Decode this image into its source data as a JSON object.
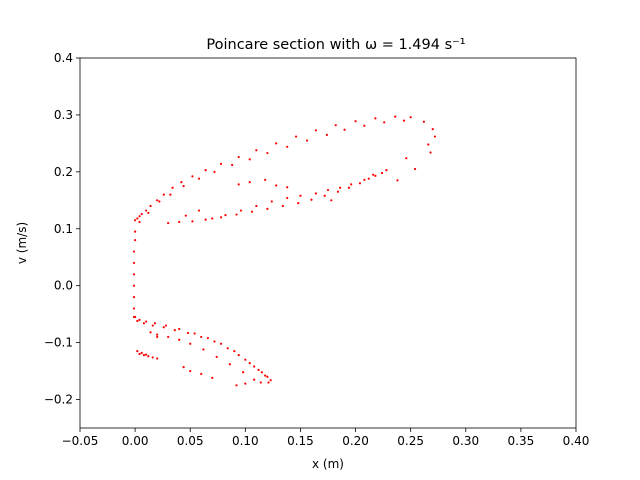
{
  "chart_data": {
    "type": "scatter",
    "title": "Poincare section with ω = 1.494 s⁻¹",
    "xlabel": "x (m)",
    "ylabel": "v (m/s)",
    "xlim": [
      -0.05,
      0.4
    ],
    "ylim": [
      -0.25,
      0.4
    ],
    "xticks": [
      -0.05,
      0.0,
      0.05,
      0.1,
      0.15,
      0.2,
      0.25,
      0.3,
      0.35,
      0.4
    ],
    "xtick_labels": [
      "−0.05",
      "0.00",
      "0.05",
      "0.10",
      "0.15",
      "0.20",
      "0.25",
      "0.30",
      "0.35",
      "0.40"
    ],
    "yticks": [
      -0.2,
      -0.1,
      0.0,
      0.1,
      0.2,
      0.3,
      0.4
    ],
    "ytick_labels": [
      "−0.2",
      "−0.1",
      "0.0",
      "0.1",
      "0.2",
      "0.3",
      "0.4"
    ],
    "grid": false,
    "marker_color": "#ff0000",
    "series": [
      {
        "points": [
          [
            0.0,
            0.115
          ],
          [
            0.002,
            0.118
          ],
          [
            0.004,
            0.122
          ],
          [
            0.006,
            0.126
          ],
          [
            0.01,
            0.132
          ],
          [
            0.014,
            0.14
          ],
          [
            0.02,
            0.15
          ],
          [
            0.026,
            0.16
          ],
          [
            0.034,
            0.172
          ],
          [
            0.042,
            0.182
          ],
          [
            0.052,
            0.192
          ],
          [
            0.064,
            0.203
          ],
          [
            0.078,
            0.214
          ],
          [
            0.094,
            0.226
          ],
          [
            0.11,
            0.238
          ],
          [
            0.128,
            0.25
          ],
          [
            0.146,
            0.262
          ],
          [
            0.164,
            0.273
          ],
          [
            0.182,
            0.282
          ],
          [
            0.2,
            0.289
          ],
          [
            0.218,
            0.294
          ],
          [
            0.236,
            0.297
          ],
          [
            0.25,
            0.296
          ],
          [
            0.262,
            0.288
          ],
          [
            0.27,
            0.275
          ],
          [
            0.272,
            0.262
          ],
          [
            0.266,
            0.248
          ],
          [
            0.004,
            0.112
          ],
          [
            0.012,
            0.128
          ],
          [
            0.022,
            0.148
          ],
          [
            0.032,
            0.16
          ],
          [
            0.044,
            0.175
          ],
          [
            0.058,
            0.188
          ],
          [
            0.072,
            0.2
          ],
          [
            0.088,
            0.212
          ],
          [
            0.104,
            0.222
          ],
          [
            0.12,
            0.233
          ],
          [
            0.138,
            0.244
          ],
          [
            0.156,
            0.255
          ],
          [
            0.174,
            0.265
          ],
          [
            0.19,
            0.274
          ],
          [
            0.208,
            0.281
          ],
          [
            0.226,
            0.287
          ],
          [
            0.244,
            0.29
          ],
          [
            0.03,
            0.11
          ],
          [
            0.04,
            0.112
          ],
          [
            0.052,
            0.113
          ],
          [
            0.064,
            0.116
          ],
          [
            0.078,
            0.12
          ],
          [
            0.092,
            0.125
          ],
          [
            0.106,
            0.13
          ],
          [
            0.12,
            0.135
          ],
          [
            0.134,
            0.14
          ],
          [
            0.148,
            0.145
          ],
          [
            0.16,
            0.151
          ],
          [
            0.172,
            0.158
          ],
          [
            0.184,
            0.165
          ],
          [
            0.194,
            0.172
          ],
          [
            0.204,
            0.18
          ],
          [
            0.212,
            0.188
          ],
          [
            0.218,
            0.193
          ],
          [
            0.224,
            0.198
          ],
          [
            0.228,
            0.203
          ],
          [
            0.216,
            0.195
          ],
          [
            0.208,
            0.186
          ],
          [
            0.196,
            0.178
          ],
          [
            0.186,
            0.172
          ],
          [
            0.175,
            0.168
          ],
          [
            0.164,
            0.162
          ],
          [
            0.07,
            0.118
          ],
          [
            0.082,
            0.124
          ],
          [
            0.096,
            0.132
          ],
          [
            0.11,
            0.14
          ],
          [
            0.124,
            0.148
          ],
          [
            0.138,
            0.154
          ],
          [
            0.15,
            0.158
          ],
          [
            0.046,
            0.123
          ],
          [
            0.058,
            0.132
          ],
          [
            0.094,
            0.178
          ],
          [
            0.104,
            0.182
          ],
          [
            0.118,
            0.186
          ],
          [
            0.128,
            0.176
          ],
          [
            0.138,
            0.173
          ],
          [
            0.268,
            0.234
          ],
          [
            0.246,
            0.224
          ],
          [
            0.254,
            0.205
          ],
          [
            0.238,
            0.185
          ],
          [
            0.178,
            0.15
          ],
          [
            0.0,
            0.095
          ],
          [
            0.0,
            0.08
          ],
          [
            -0.001,
            0.06
          ],
          [
            -0.001,
            0.04
          ],
          [
            -0.001,
            0.02
          ],
          [
            -0.001,
            0.0
          ],
          [
            -0.001,
            -0.02
          ],
          [
            -0.001,
            -0.04
          ],
          [
            -0.001,
            -0.055
          ],
          [
            0.0,
            -0.055
          ],
          [
            0.004,
            -0.06
          ],
          [
            0.01,
            -0.063
          ],
          [
            0.018,
            -0.066
          ],
          [
            0.028,
            -0.07
          ],
          [
            0.04,
            -0.076
          ],
          [
            0.054,
            -0.084
          ],
          [
            0.066,
            -0.092
          ],
          [
            0.078,
            -0.102
          ],
          [
            0.09,
            -0.115
          ],
          [
            0.1,
            -0.13
          ],
          [
            0.108,
            -0.142
          ],
          [
            0.115,
            -0.152
          ],
          [
            0.12,
            -0.16
          ],
          [
            0.123,
            -0.166
          ],
          [
            0.121,
            -0.17
          ],
          [
            0.114,
            -0.17
          ],
          [
            0.108,
            -0.165
          ],
          [
            0.098,
            -0.152
          ],
          [
            0.086,
            -0.138
          ],
          [
            0.074,
            -0.125
          ],
          [
            0.062,
            -0.112
          ],
          [
            0.05,
            -0.102
          ],
          [
            0.04,
            -0.095
          ],
          [
            0.03,
            -0.09
          ],
          [
            0.02,
            -0.086
          ],
          [
            0.002,
            -0.062
          ],
          [
            0.008,
            -0.066
          ],
          [
            0.016,
            -0.07
          ],
          [
            0.026,
            -0.073
          ],
          [
            0.036,
            -0.078
          ],
          [
            0.048,
            -0.083
          ],
          [
            0.06,
            -0.09
          ],
          [
            0.072,
            -0.098
          ],
          [
            0.084,
            -0.11
          ],
          [
            0.094,
            -0.122
          ],
          [
            0.104,
            -0.136
          ],
          [
            0.112,
            -0.148
          ],
          [
            0.118,
            -0.158
          ],
          [
            0.002,
            -0.115
          ],
          [
            0.004,
            -0.12
          ],
          [
            0.008,
            -0.122
          ],
          [
            0.012,
            -0.124
          ],
          [
            0.016,
            -0.126
          ],
          [
            0.02,
            -0.128
          ],
          [
            0.006,
            -0.118
          ],
          [
            0.01,
            -0.121
          ],
          [
            0.014,
            -0.082
          ],
          [
            0.02,
            -0.09
          ],
          [
            0.044,
            -0.143
          ],
          [
            0.05,
            -0.15
          ],
          [
            0.06,
            -0.155
          ],
          [
            0.07,
            -0.162
          ],
          [
            0.092,
            -0.175
          ],
          [
            0.1,
            -0.172
          ]
        ]
      }
    ]
  }
}
